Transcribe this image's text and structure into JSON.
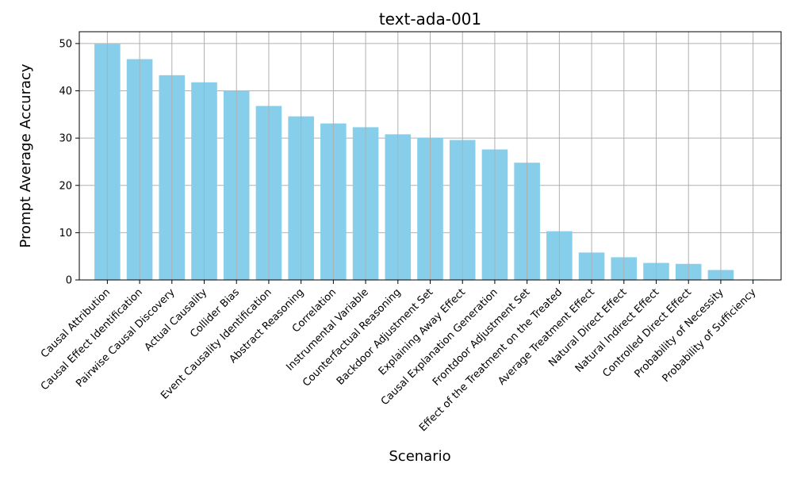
{
  "chart_data": {
    "type": "bar",
    "title": "text-ada-001",
    "xlabel": "Scenario",
    "ylabel": "Prompt Average Accuracy",
    "ylim": [
      0,
      52.5
    ],
    "yticks": [
      0,
      10,
      20,
      30,
      40,
      50
    ],
    "grid": true,
    "bar_color": "#87CEEB",
    "grid_color": "#b0b0b0",
    "categories": [
      "Causal Attribution",
      "Causal Effect Identification",
      "Pairwise Causal Discovery",
      "Actual Causality",
      "Collider Bias",
      "Event Causality Identification",
      "Abstract Reasoning",
      "Correlation",
      "Instrumental Variable",
      "Counterfactual Reasoning",
      "Backdoor Adjustment Set",
      "Explaining Away Effect",
      "Causal Explanation Generation",
      "Frontdoor Adjustment Set",
      "Effect of the Treatment on the Treated",
      "Average Treatment Effect",
      "Natural Direct Effect",
      "Natural Indirect Effect",
      "Controlled Direct Effect",
      "Probability of Necessity",
      "Probability of Sufficiency"
    ],
    "values": [
      49.9,
      46.7,
      43.3,
      41.8,
      40.0,
      36.8,
      34.6,
      33.1,
      32.3,
      30.8,
      30.1,
      29.6,
      27.6,
      24.8,
      10.3,
      5.8,
      4.8,
      3.6,
      3.4,
      2.1,
      0.1
    ]
  }
}
